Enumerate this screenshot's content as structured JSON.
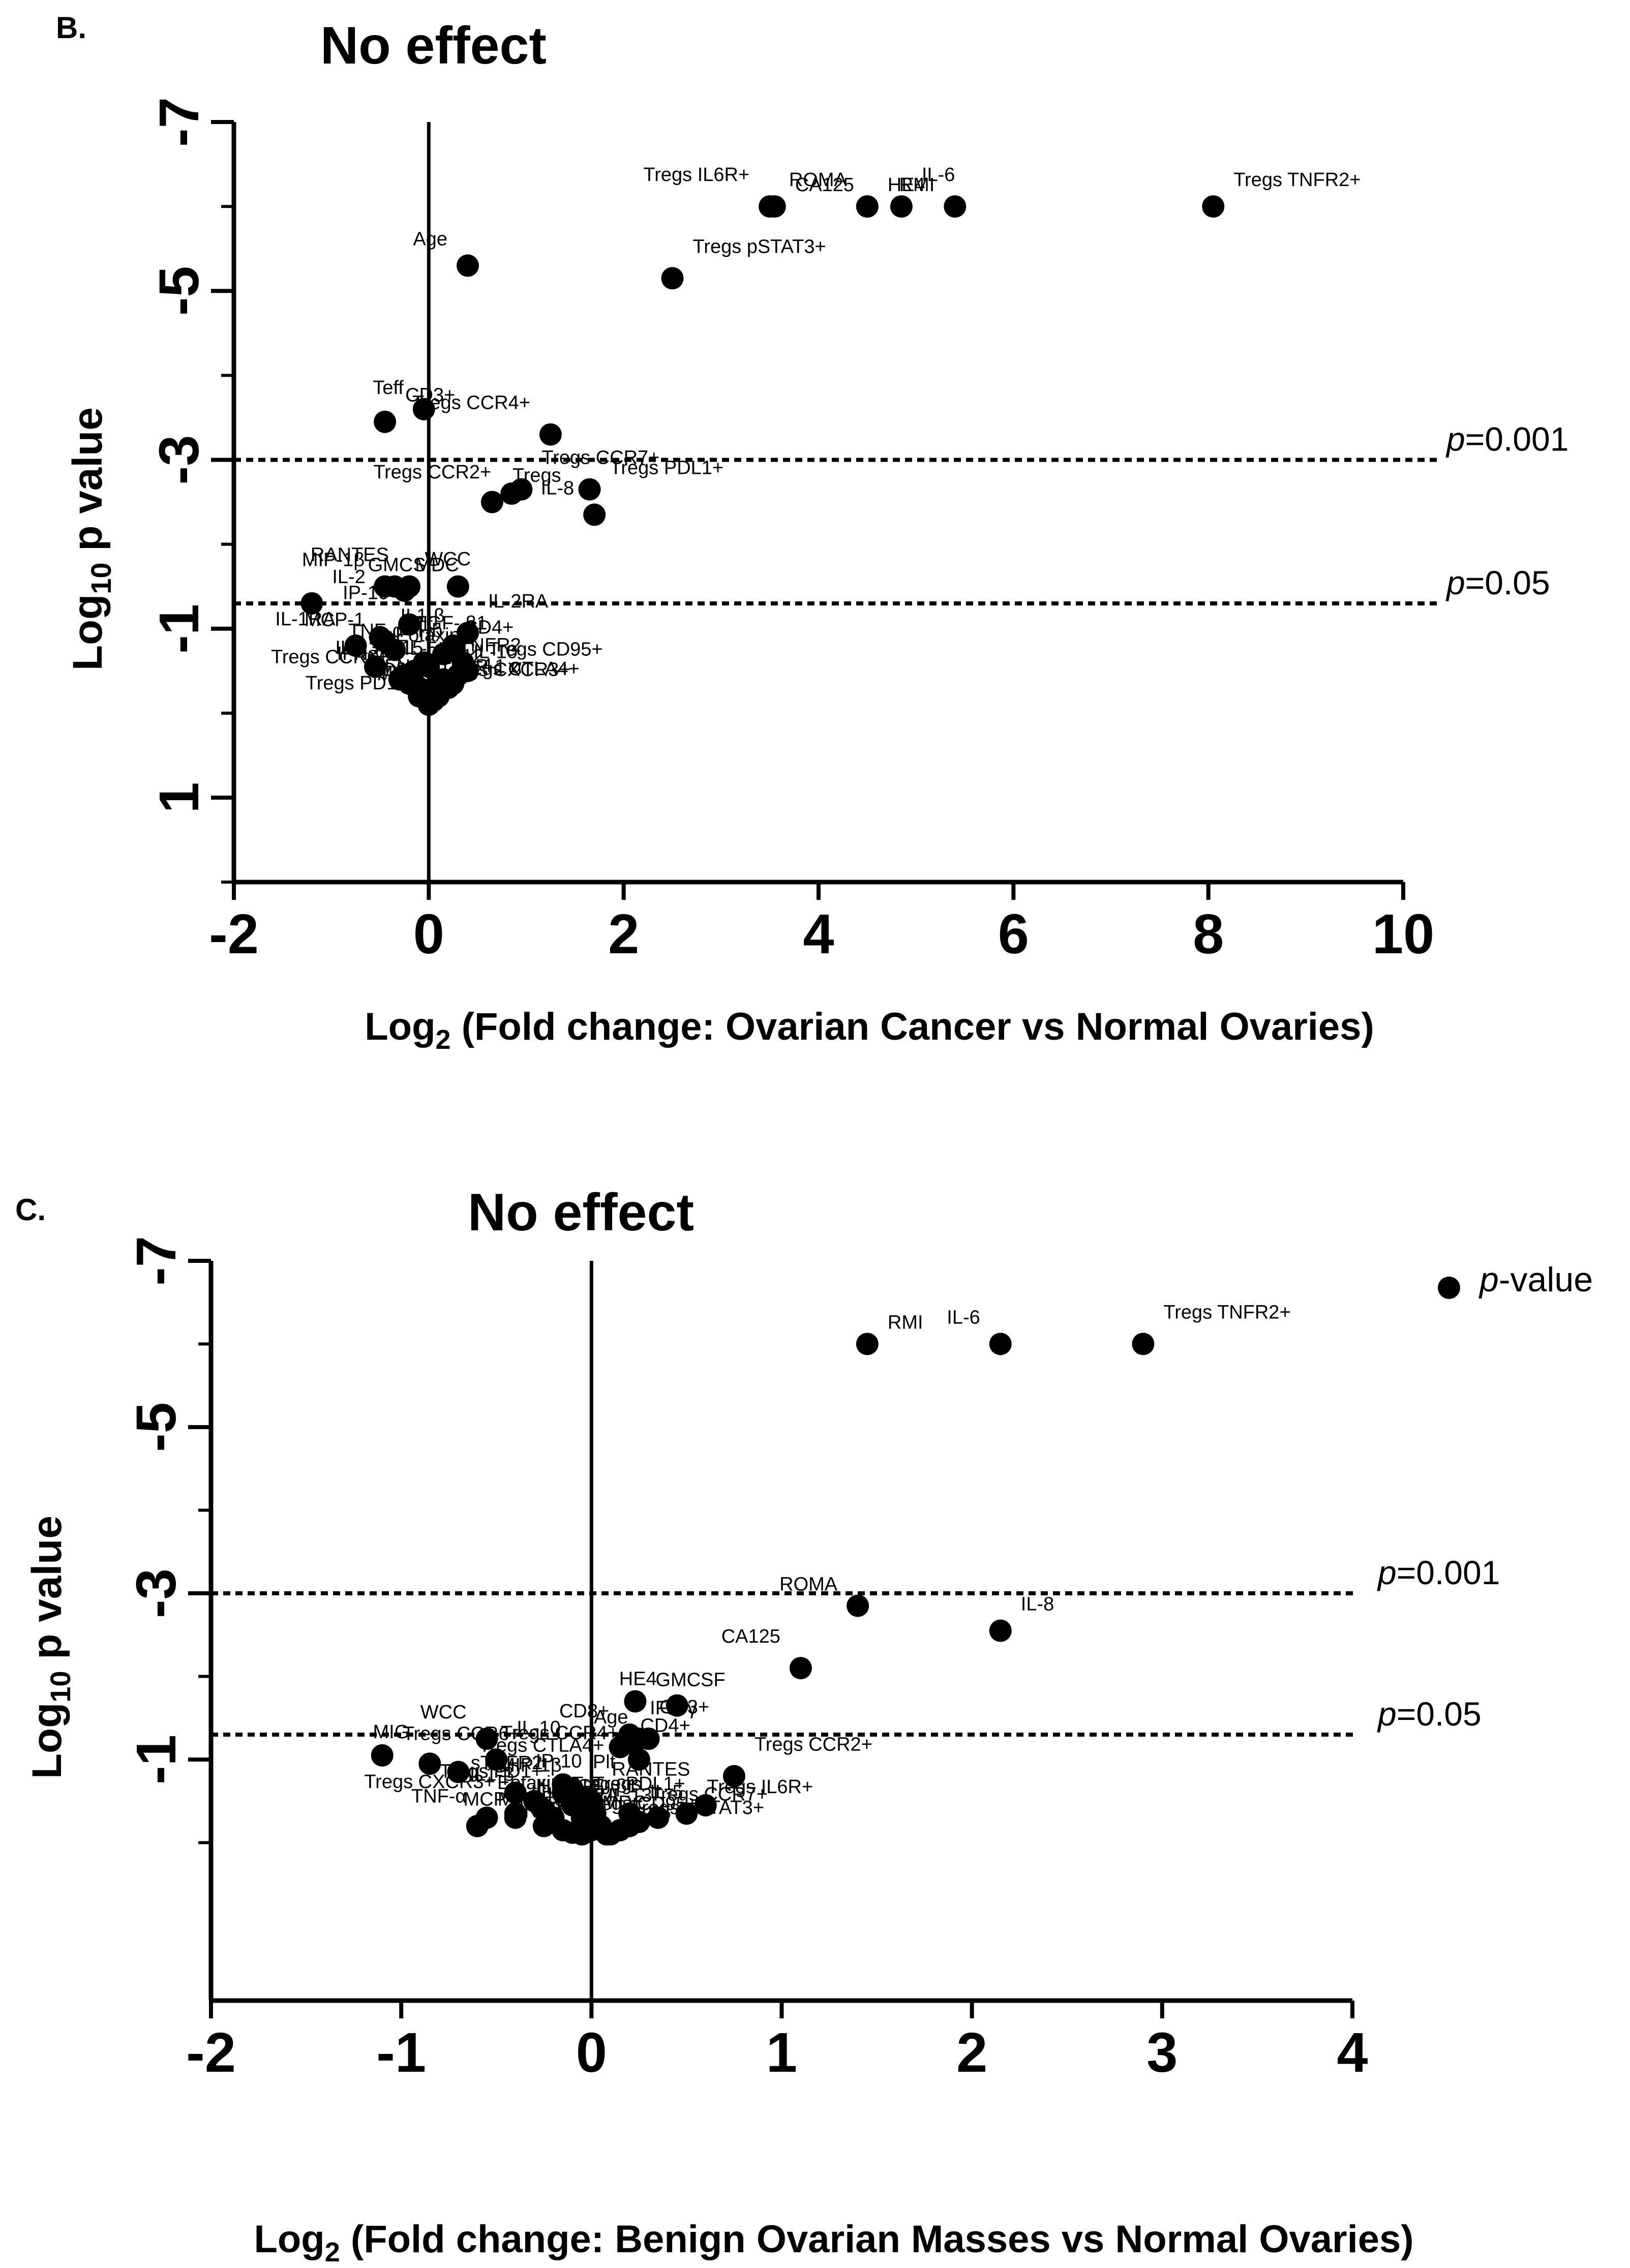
{
  "chart_data": [
    {
      "type": "scatter",
      "panel": "B.",
      "title": "No effect",
      "xlabel": "Log2 (Fold change: Ovarian Cancer vs Normal Ovaries)",
      "xlabel_main": "Log",
      "xlabel_sub": "2",
      "xlabel_rest": " (Fold change: Ovarian Cancer vs Normal Ovaries)",
      "ylabel": "Log10 p value",
      "ylabel_main": "Log",
      "ylabel_sub": "10",
      "ylabel_rest": " p value",
      "xlim": [
        -2,
        10
      ],
      "ylim": [
        2,
        -7
      ],
      "xticks": [
        -2,
        0,
        2,
        4,
        6,
        8,
        10
      ],
      "xtick_labels": [
        "-2",
        "0",
        "2",
        "4",
        "6",
        "8",
        "10"
      ],
      "yticks": [
        -7,
        -5,
        -3,
        -1,
        1
      ],
      "ytick_labels": [
        "-7",
        "-5",
        "-3",
        "-1",
        "1"
      ],
      "thresholds": [
        {
          "y": -3,
          "prefix": "p",
          "label": "=0.001"
        },
        {
          "y": -1.3,
          "prefix": "p",
          "label": "=0.05"
        }
      ],
      "points": [
        {
          "label": "CA125",
          "x": 3.55,
          "y": -6.0
        },
        {
          "label": "ROMA",
          "x": 4.5,
          "y": -6.0
        },
        {
          "label": "IL-6",
          "x": 4.85,
          "y": -6.0
        },
        {
          "label": "RMI",
          "x": 5.4,
          "y": -6.0
        },
        {
          "label": "Tregs TNFR2+",
          "x": 8.05,
          "y": -6.0
        },
        {
          "label": "Tregs IL6R+",
          "x": 3.5,
          "y": -6.0
        },
        {
          "label": "HE4",
          "x": 4.5,
          "y": -6.0
        },
        {
          "label": "Age",
          "x": 0.4,
          "y": -5.3
        },
        {
          "label": "Tregs pSTAT3+",
          "x": 2.5,
          "y": -5.15
        },
        {
          "label": "Teff",
          "x": -0.05,
          "y": -3.6
        },
        {
          "label": "CD3+",
          "x": -0.45,
          "y": -3.45
        },
        {
          "label": "Tregs CCR4+",
          "x": 1.25,
          "y": -3.3
        },
        {
          "label": "Tregs PDL1+",
          "x": 1.65,
          "y": -2.65
        },
        {
          "label": "IL-8",
          "x": 1.7,
          "y": -2.35
        },
        {
          "label": "Tregs CCR7+",
          "x": 0.95,
          "y": -2.65
        },
        {
          "label": "Tregs CCR2+",
          "x": 0.85,
          "y": -2.6
        },
        {
          "label": "Tregs",
          "x": 0.65,
          "y": -2.5
        },
        {
          "label": "RANTES",
          "x": -0.2,
          "y": -1.5
        },
        {
          "label": "MDC",
          "x": -0.35,
          "y": -1.5
        },
        {
          "label": "MIP-1β",
          "x": -0.45,
          "y": -1.5
        },
        {
          "label": "WCC",
          "x": -0.25,
          "y": -1.45
        },
        {
          "label": "GMCSF",
          "x": 0.3,
          "y": -1.5
        },
        {
          "label": "IL-2",
          "x": -1.2,
          "y": -1.3
        },
        {
          "label": "IP-10",
          "x": -0.2,
          "y": -1.05
        },
        {
          "label": "IL1-β",
          "x": -0.5,
          "y": -0.9
        },
        {
          "label": "IL-1RA",
          "x": -0.75,
          "y": -0.8
        },
        {
          "label": "Eotaxin",
          "x": -0.55,
          "y": -0.55
        },
        {
          "label": "MCP-1",
          "x": -0.45,
          "y": -0.85
        },
        {
          "label": "TGF- β1",
          "x": -0.35,
          "y": -0.75
        },
        {
          "label": "IL-13",
          "x": -0.3,
          "y": -0.4
        },
        {
          "label": "ANC",
          "x": -0.15,
          "y": -0.5
        },
        {
          "label": "Tregs CCR6+",
          "x": -0.2,
          "y": -0.35
        },
        {
          "label": "IL-12",
          "x": -0.1,
          "y": -0.3
        },
        {
          "label": "IFN-γ",
          "x": -0.25,
          "y": -0.45
        },
        {
          "label": "Tregs CXCR3+",
          "x": -0.1,
          "y": -0.2
        },
        {
          "label": "TNF-α",
          "x": -0.05,
          "y": -0.6
        },
        {
          "label": "sTNFR2",
          "x": 0.0,
          "y": -0.55
        },
        {
          "label": "MIG",
          "x": 0.05,
          "y": -0.15
        },
        {
          "label": "IL-2RA",
          "x": 0.4,
          "y": -0.95
        },
        {
          "label": "Plt",
          "x": 0.25,
          "y": -0.8
        },
        {
          "label": "CD4+",
          "x": 0.15,
          "y": -0.7
        },
        {
          "label": "Hb",
          "x": 0.35,
          "y": -0.6
        },
        {
          "label": "Tregs CD95+",
          "x": 0.4,
          "y": -0.5
        },
        {
          "label": "IL-5",
          "x": 0.3,
          "y": -0.45
        },
        {
          "label": "IL-10",
          "x": 0.25,
          "y": -0.35
        },
        {
          "label": "IFN-α",
          "x": 0.2,
          "y": -0.3
        },
        {
          "label": "IL-4",
          "x": 0.1,
          "y": -0.25
        },
        {
          "label": "IL-15",
          "x": 0.15,
          "y": -0.4
        },
        {
          "label": "MIP-1 α",
          "x": 0.05,
          "y": -0.3
        },
        {
          "label": "CD8+",
          "x": 0.1,
          "y": -0.2
        },
        {
          "label": "Tregs CTLA4+",
          "x": 0.05,
          "y": -0.15
        },
        {
          "label": "Tregs PD1+",
          "x": 0.0,
          "y": -0.1
        }
      ]
    },
    {
      "type": "scatter",
      "panel": "C.",
      "title": "No effect",
      "xlabel": "Log2 (Fold change: Benign Ovarian Masses vs Normal Ovaries)",
      "xlabel_main": "Log",
      "xlabel_sub": "2",
      "xlabel_rest": " (Fold change: Benign Ovarian Masses vs Normal Ovaries)",
      "ylabel": "Log10 p value",
      "ylabel_main": "Log",
      "ylabel_sub": "10",
      "ylabel_rest": " p value",
      "xlim": [
        -2,
        4
      ],
      "ylim": [
        1.9,
        -7
      ],
      "xticks": [
        -2,
        -1,
        0,
        1,
        2,
        3,
        4
      ],
      "xtick_labels": [
        "-2",
        "-1",
        "0",
        "1",
        "2",
        "3",
        "4"
      ],
      "yticks": [
        -7,
        -5,
        -3,
        -1
      ],
      "ytick_labels": [
        "-7",
        "-5",
        "-3",
        "-1"
      ],
      "thresholds": [
        {
          "y": -3,
          "prefix": "p",
          "label": "=0.001"
        },
        {
          "y": -1.3,
          "prefix": "p",
          "label": "=0.05"
        }
      ],
      "legend": {
        "prefix": "p",
        "label": "-value",
        "placement": "top-right"
      },
      "points": [
        {
          "label": "RMI",
          "x": 1.45,
          "y": -6.0
        },
        {
          "label": "IL-6",
          "x": 2.15,
          "y": -6.0
        },
        {
          "label": "Tregs TNFR2+",
          "x": 2.9,
          "y": -6.0
        },
        {
          "label": "ROMA",
          "x": 1.4,
          "y": -2.85
        },
        {
          "label": "IL-8",
          "x": 2.15,
          "y": -2.55
        },
        {
          "label": "CA125",
          "x": 1.1,
          "y": -2.1
        },
        {
          "label": "GMCSF",
          "x": 0.23,
          "y": -1.7
        },
        {
          "label": "HE4",
          "x": 0.45,
          "y": -1.65
        },
        {
          "label": "CD3+",
          "x": 0.25,
          "y": -1.25
        },
        {
          "label": "Age",
          "x": 0.3,
          "y": -1.25
        },
        {
          "label": "IFN-γ",
          "x": 0.2,
          "y": -1.3
        },
        {
          "label": "CD8+",
          "x": 0.2,
          "y": -1.2
        },
        {
          "label": "CD4+",
          "x": 0.15,
          "y": -1.15
        },
        {
          "label": "Tregs CCR4+",
          "x": 0.25,
          "y": -1.0
        },
        {
          "label": "Tregs CCR2+",
          "x": 0.75,
          "y": -0.8
        },
        {
          "label": "Tregs PDL1+",
          "x": 0.6,
          "y": -0.45
        },
        {
          "label": "Tregs IL6R+",
          "x": 0.5,
          "y": -0.35
        },
        {
          "label": "TGF- β1",
          "x": 0.35,
          "y": -0.3
        },
        {
          "label": "IL-5",
          "x": 0.2,
          "y": -0.35
        },
        {
          "label": "IL-2RA",
          "x": 0.25,
          "y": -0.25
        },
        {
          "label": "Tregs CCR7+",
          "x": 0.2,
          "y": -0.2
        },
        {
          "label": "IFN-α",
          "x": 0.15,
          "y": -0.15
        },
        {
          "label": "Tregs pSTAT3+",
          "x": 0.1,
          "y": -0.1
        },
        {
          "label": "IL-2",
          "x": 0.05,
          "y": -0.2
        },
        {
          "label": "IL-15",
          "x": 0.08,
          "y": -0.1
        },
        {
          "label": "IL-1RA",
          "x": 0.0,
          "y": -0.15
        },
        {
          "label": "MDC",
          "x": -0.05,
          "y": -0.1
        },
        {
          "label": "ANC",
          "x": -0.1,
          "y": -0.12
        },
        {
          "label": "Tregs CD95+",
          "x": -0.15,
          "y": -0.15
        },
        {
          "label": "Hb",
          "x": -0.05,
          "y": -0.3
        },
        {
          "label": "Teff",
          "x": -0.2,
          "y": -0.3
        },
        {
          "label": "MCP-1",
          "x": -0.25,
          "y": -0.2
        },
        {
          "label": "IL-13",
          "x": -0.4,
          "y": -0.3
        },
        {
          "label": "TNF-α",
          "x": -0.55,
          "y": -0.3
        },
        {
          "label": "MIP-1 α",
          "x": -0.6,
          "y": -0.2
        },
        {
          "label": "Tregs CXCR3+",
          "x": -0.4,
          "y": -0.35
        },
        {
          "label": "IL-4",
          "x": -0.25,
          "y": -0.4
        },
        {
          "label": "IL1-β",
          "x": -0.3,
          "y": -0.5
        },
        {
          "label": "IP-10",
          "x": -0.4,
          "y": -0.6
        },
        {
          "label": "sTNFR2",
          "x": -0.15,
          "y": -0.7
        },
        {
          "label": "Tregs CTLA4+",
          "x": -0.7,
          "y": -0.85
        },
        {
          "label": "MIG",
          "x": -0.85,
          "y": -0.95
        },
        {
          "label": "Tregs CCR6+",
          "x": -1.1,
          "y": -1.05
        },
        {
          "label": "WCC",
          "x": -0.55,
          "y": -1.25
        },
        {
          "label": "IL-10",
          "x": -0.5,
          "y": -1.0
        },
        {
          "label": "Tregs PD1+",
          "x": -0.15,
          "y": -0.6
        },
        {
          "label": "Plt",
          "x": -0.1,
          "y": -0.65
        },
        {
          "label": "MIP-1β",
          "x": -0.05,
          "y": -0.55
        },
        {
          "label": "Tregs",
          "x": -0.1,
          "y": -0.45
        },
        {
          "label": "Eotaxin",
          "x": -0.05,
          "y": -0.4
        },
        {
          "label": "RANTES",
          "x": 0.0,
          "y": -0.5
        },
        {
          "label": "IL-12",
          "x": 0.02,
          "y": -0.35
        },
        {
          "label": "IL-13",
          "x": -0.02,
          "y": -0.25
        }
      ]
    }
  ]
}
